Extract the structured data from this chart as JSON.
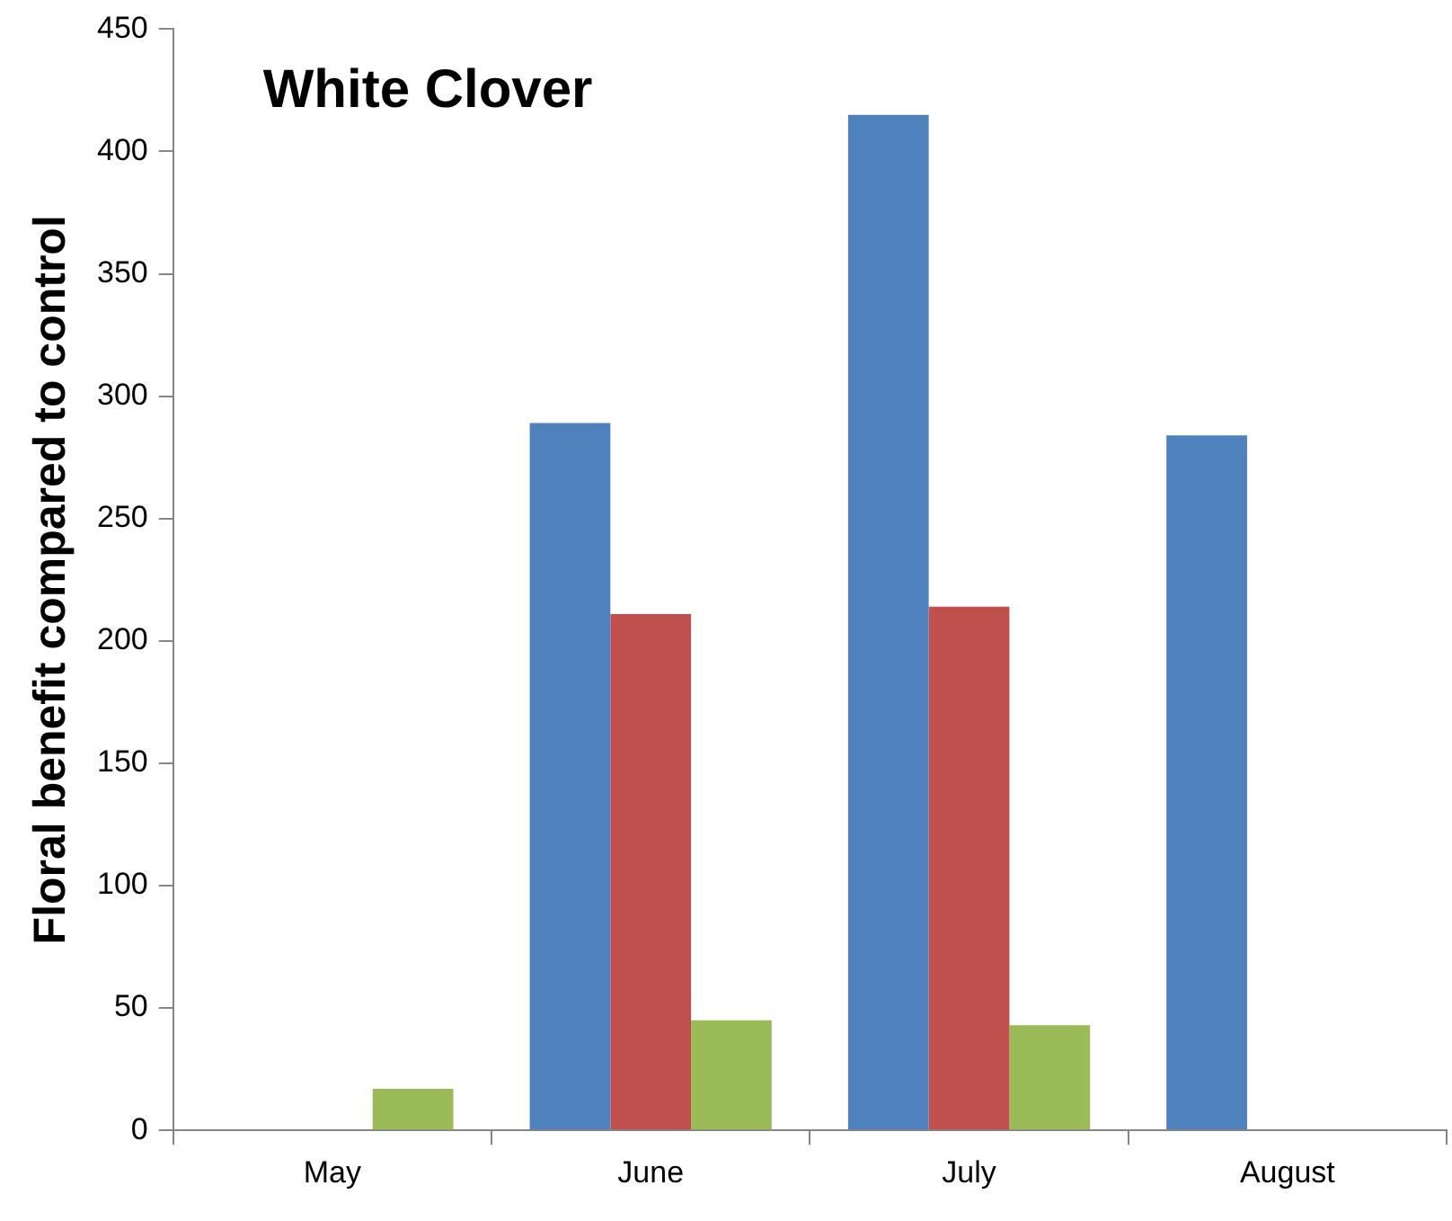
{
  "chart_data": {
    "type": "bar",
    "title": "White Clover",
    "ylabel": "Floral benefit compared to control",
    "categories": [
      "May",
      "June",
      "July",
      "August"
    ],
    "series": [
      {
        "color": "#4f81bd",
        "values": [
          null,
          289,
          415,
          284
        ]
      },
      {
        "color": "#c0504d",
        "values": [
          null,
          211,
          214,
          null
        ]
      },
      {
        "color": "#9bbb59",
        "values": [
          17,
          45,
          43,
          null
        ]
      }
    ],
    "ylim": [
      0,
      450
    ],
    "yticks": [
      0,
      50,
      100,
      150,
      200,
      250,
      300,
      350,
      400,
      450
    ],
    "grid": false,
    "legend": false
  }
}
